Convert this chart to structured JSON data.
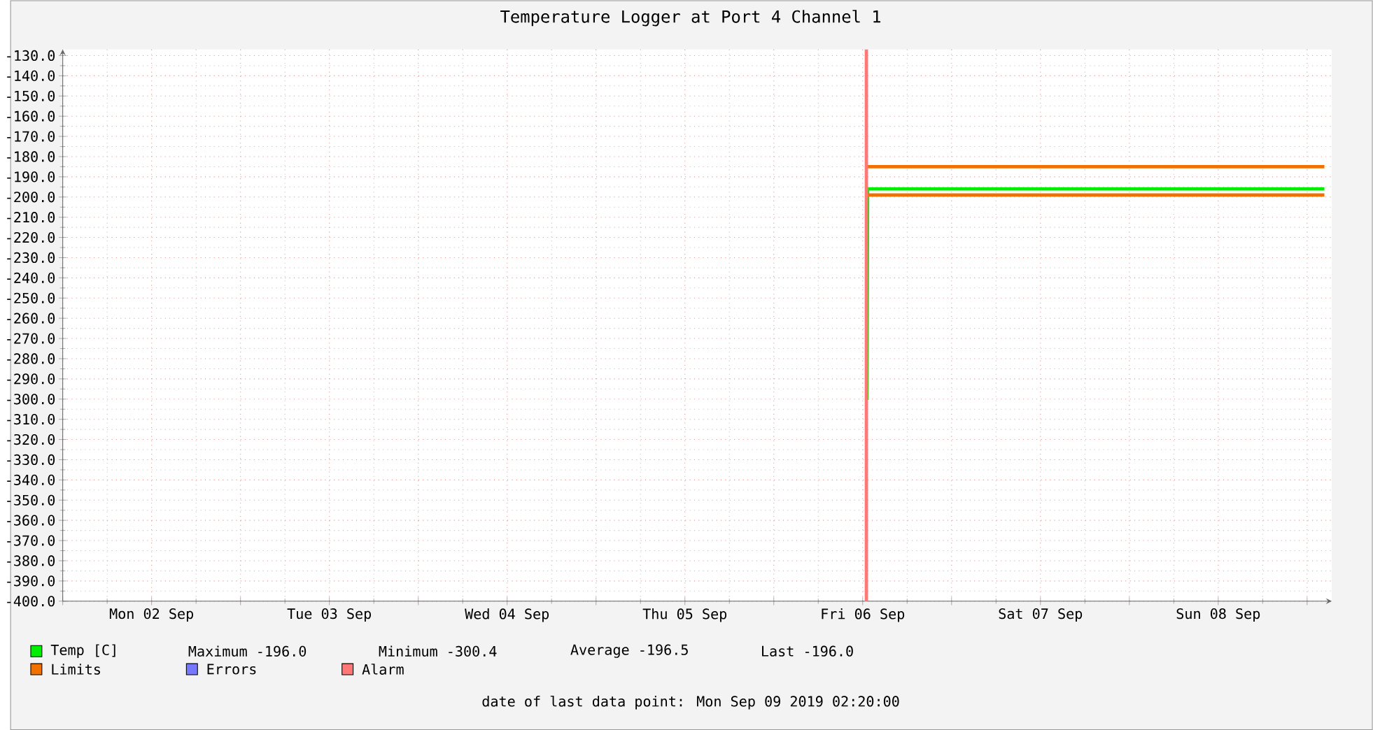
{
  "chart_data": {
    "type": "line",
    "title": "Temperature Logger at Port 4 Channel 1",
    "xlim": [
      "2019-09-02T00:00",
      "2019-09-09T03:20"
    ],
    "ylim": [
      -400,
      -127
    ],
    "xticks": [
      {
        "value": "2019-09-02T00:00",
        "label": null
      },
      {
        "value": "2019-09-02T12:00",
        "label": "Mon 02 Sep"
      },
      {
        "value": "2019-09-03T00:00",
        "label": null
      },
      {
        "value": "2019-09-03T12:00",
        "label": "Tue 03 Sep"
      },
      {
        "value": "2019-09-04T00:00",
        "label": null
      },
      {
        "value": "2019-09-04T12:00",
        "label": "Wed 04 Sep"
      },
      {
        "value": "2019-09-05T00:00",
        "label": null
      },
      {
        "value": "2019-09-05T12:00",
        "label": "Thu 05 Sep"
      },
      {
        "value": "2019-09-06T00:00",
        "label": null
      },
      {
        "value": "2019-09-06T12:00",
        "label": "Fri 06 Sep"
      },
      {
        "value": "2019-09-07T00:00",
        "label": null
      },
      {
        "value": "2019-09-07T12:00",
        "label": "Sat 07 Sep"
      },
      {
        "value": "2019-09-08T00:00",
        "label": null
      },
      {
        "value": "2019-09-08T12:00",
        "label": "Sun 08 Sep"
      },
      {
        "value": "2019-09-09T00:00",
        "label": null
      }
    ],
    "yticks": [
      {
        "value": -400,
        "label": "-400.0"
      },
      {
        "value": -390,
        "label": "-390.0"
      },
      {
        "value": -380,
        "label": "-380.0"
      },
      {
        "value": -370,
        "label": "-370.0"
      },
      {
        "value": -360,
        "label": "-360.0"
      },
      {
        "value": -350,
        "label": "-350.0"
      },
      {
        "value": -340,
        "label": "-340.0"
      },
      {
        "value": -330,
        "label": "-330.0"
      },
      {
        "value": -320,
        "label": "-320.0"
      },
      {
        "value": -310,
        "label": "-310.0"
      },
      {
        "value": -300,
        "label": "-300.0"
      },
      {
        "value": -290,
        "label": "-290.0"
      },
      {
        "value": -280,
        "label": "-280.0"
      },
      {
        "value": -270,
        "label": "-270.0"
      },
      {
        "value": -260,
        "label": "-260.0"
      },
      {
        "value": -250,
        "label": "-250.0"
      },
      {
        "value": -240,
        "label": "-240.0"
      },
      {
        "value": -230,
        "label": "-230.0"
      },
      {
        "value": -220,
        "label": "-220.0"
      },
      {
        "value": -210,
        "label": "-210.0"
      },
      {
        "value": -200,
        "label": "-200.0"
      },
      {
        "value": -190,
        "label": "-190.0"
      },
      {
        "value": -180,
        "label": "-180.0"
      },
      {
        "value": -170,
        "label": "-170.0"
      },
      {
        "value": -160,
        "label": "-160.0"
      },
      {
        "value": -150,
        "label": "-150.0"
      },
      {
        "value": -140,
        "label": "-140.0"
      },
      {
        "value": -130,
        "label": "-130.0"
      }
    ],
    "grid": true,
    "legend": "bottom",
    "series": [
      {
        "name": "Temp [C]",
        "color": "#00ee00",
        "x": [
          "2019-09-06T12:35",
          "2019-09-06T12:40",
          "2019-09-09T02:20"
        ],
        "values": [
          -300.4,
          -196,
          -196
        ]
      },
      {
        "name": "Limits",
        "color": "#f07000",
        "x": [
          "2019-09-06T12:30",
          "2019-09-09T02:20"
        ],
        "values": [
          -185,
          -185
        ]
      },
      {
        "color": "#f07000",
        "x": [
          "2019-09-06T12:30",
          "2019-09-09T02:20"
        ],
        "values": [
          -199,
          -199
        ]
      },
      {
        "name": "Errors",
        "color": "#7777ff"
      },
      {
        "name": "Alarm",
        "color": "#ff7777",
        "x": [
          "2019-09-06T12:30",
          "2019-09-06T12:30"
        ],
        "values": [
          -400,
          -127
        ]
      }
    ],
    "annotations": [
      "Maximum -196.0",
      "Minimum -300.4",
      "Average -196.5",
      "Last -196.0",
      "date of last data point: Mon Sep 09 2019 02:20:00"
    ]
  }
}
